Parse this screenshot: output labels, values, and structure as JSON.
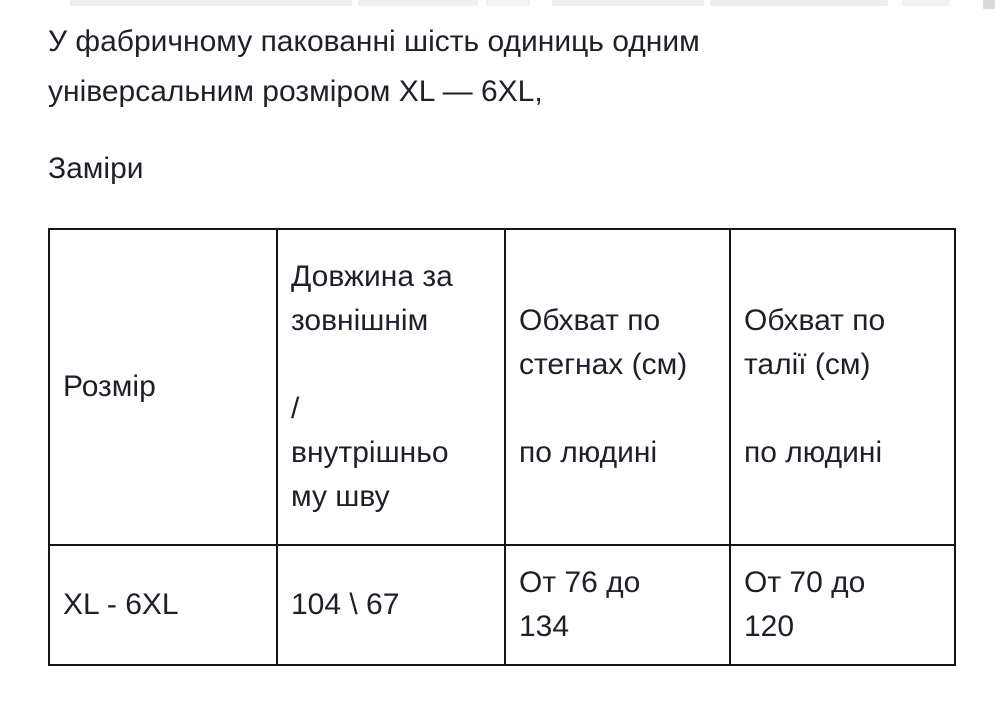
{
  "page": {
    "background_color": "#ffffff",
    "text_color": "#1f1f29",
    "table_border_color": "#161616"
  },
  "intro_paragraph": {
    "text": "У фабричному пакованні шість одиниць одним\nуніверсальним розміром XL — 6XL,"
  },
  "section_heading": {
    "text": "Заміри"
  },
  "size_table": {
    "headers": [
      "Розмір",
      "Довжина за\nзовнішнім\n\n/\nвнутрішньо\nму шву",
      "Обхват по\nстегнах (см)\n\nпо людині",
      "Обхват по\nталії (см)\n\nпо людині"
    ],
    "rows": [
      [
        "XL - 6XL",
        "104 \\ 67",
        "От 76 до\n134",
        "От 70 до\n120"
      ]
    ]
  }
}
